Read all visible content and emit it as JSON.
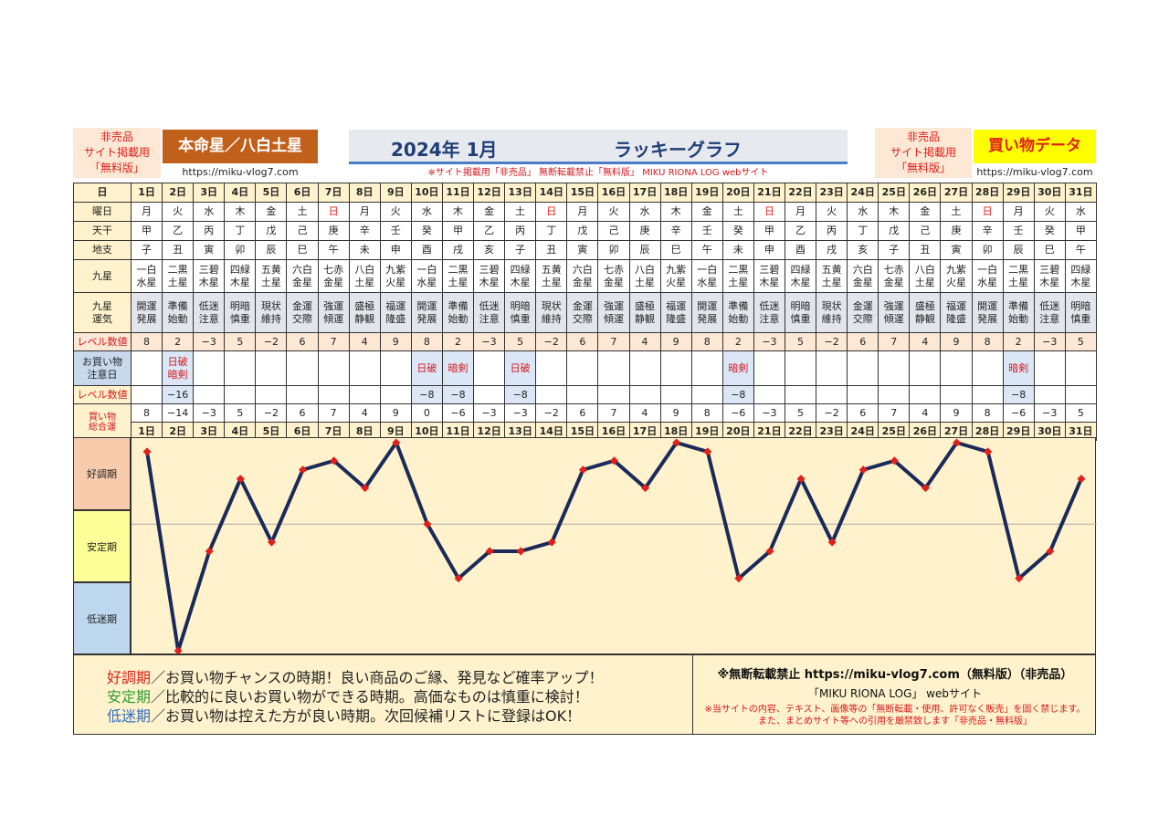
{
  "header": {
    "left_note": [
      "非売品",
      "サイト掲載用",
      "「無料版」"
    ],
    "honmei": "本命星／八白土星",
    "url_left": "https://miku-vlog7.com",
    "title_year": "2024年 1月",
    "title_lucky": "ラッキーグラフ",
    "notice": "※サイト掲載用「非売品」 無断転載禁止「無料版」 MIKU RIONA LOG webサイト",
    "right_note": [
      "非売品",
      "サイト掲載用",
      "「無料版」"
    ],
    "kaimono": "買い物データ",
    "url_right": "https://miku-vlog7.com"
  },
  "labels": {
    "day": "日",
    "weekday": "曜日",
    "tenkan": "天干",
    "chishi": "地支",
    "kyusei": [
      "九星"
    ],
    "kyusei_un": [
      "九星",
      "運気"
    ],
    "level": "レベル数値",
    "caution": [
      "お買い物",
      "注意日"
    ],
    "level2": "レベル数値",
    "total": [
      "買い物",
      "総合運"
    ]
  },
  "days": [
    "1日",
    "2日",
    "3日",
    "4日",
    "5日",
    "6日",
    "7日",
    "8日",
    "9日",
    "10日",
    "11日",
    "12日",
    "13日",
    "14日",
    "15日",
    "16日",
    "17日",
    "18日",
    "19日",
    "20日",
    "21日",
    "22日",
    "23日",
    "24日",
    "25日",
    "26日",
    "27日",
    "28日",
    "29日",
    "30日",
    "31日"
  ],
  "weekdays": [
    "月",
    "火",
    "水",
    "木",
    "金",
    "土",
    "日",
    "月",
    "火",
    "水",
    "木",
    "金",
    "土",
    "日",
    "月",
    "火",
    "水",
    "木",
    "金",
    "土",
    "日",
    "月",
    "火",
    "水",
    "木",
    "金",
    "土",
    "日",
    "月",
    "火",
    "水"
  ],
  "sunday_color": "#e0201a",
  "tenkan": [
    "甲",
    "乙",
    "丙",
    "丁",
    "戊",
    "己",
    "庚",
    "辛",
    "壬",
    "癸",
    "甲",
    "乙",
    "丙",
    "丁",
    "戊",
    "己",
    "庚",
    "辛",
    "壬",
    "癸",
    "甲",
    "乙",
    "丙",
    "丁",
    "戊",
    "己",
    "庚",
    "辛",
    "壬",
    "癸",
    "甲"
  ],
  "chishi": [
    "子",
    "丑",
    "寅",
    "卯",
    "辰",
    "巳",
    "午",
    "未",
    "申",
    "酉",
    "戌",
    "亥",
    "子",
    "丑",
    "寅",
    "卯",
    "辰",
    "巳",
    "午",
    "未",
    "申",
    "酉",
    "戌",
    "亥",
    "子",
    "丑",
    "寅",
    "卯",
    "辰",
    "巳",
    "午"
  ],
  "kyusei": [
    [
      "一白",
      "水星"
    ],
    [
      "二黒",
      "土星"
    ],
    [
      "三碧",
      "木星"
    ],
    [
      "四緑",
      "木星"
    ],
    [
      "五黄",
      "土星"
    ],
    [
      "六白",
      "金星"
    ],
    [
      "七赤",
      "金星"
    ],
    [
      "八白",
      "土星"
    ],
    [
      "九紫",
      "火星"
    ],
    [
      "一白",
      "水星"
    ],
    [
      "二黒",
      "土星"
    ],
    [
      "三碧",
      "木星"
    ],
    [
      "四緑",
      "木星"
    ],
    [
      "五黄",
      "土星"
    ],
    [
      "六白",
      "金星"
    ],
    [
      "七赤",
      "金星"
    ],
    [
      "八白",
      "土星"
    ],
    [
      "九紫",
      "火星"
    ],
    [
      "一白",
      "水星"
    ],
    [
      "二黒",
      "土星"
    ],
    [
      "三碧",
      "木星"
    ],
    [
      "四緑",
      "木星"
    ],
    [
      "五黄",
      "土星"
    ],
    [
      "六白",
      "金星"
    ],
    [
      "七赤",
      "金星"
    ],
    [
      "八白",
      "土星"
    ],
    [
      "九紫",
      "火星"
    ],
    [
      "一白",
      "水星"
    ],
    [
      "二黒",
      "土星"
    ],
    [
      "三碧",
      "木星"
    ],
    [
      "四緑",
      "木星"
    ]
  ],
  "unki": [
    [
      "開運",
      "発展"
    ],
    [
      "準備",
      "始動"
    ],
    [
      "低迷",
      "注意"
    ],
    [
      "明暗",
      "慎重"
    ],
    [
      "現状",
      "維持"
    ],
    [
      "金運",
      "交際"
    ],
    [
      "強運",
      "傾運"
    ],
    [
      "盛極",
      "静観"
    ],
    [
      "福運",
      "隆盛"
    ],
    [
      "開運",
      "発展"
    ],
    [
      "準備",
      "始動"
    ],
    [
      "低迷",
      "注意"
    ],
    [
      "明暗",
      "慎重"
    ],
    [
      "現状",
      "維持"
    ],
    [
      "金運",
      "交際"
    ],
    [
      "強運",
      "傾運"
    ],
    [
      "盛極",
      "静観"
    ],
    [
      "福運",
      "隆盛"
    ],
    [
      "開運",
      "発展"
    ],
    [
      "準備",
      "始動"
    ],
    [
      "低迷",
      "注意"
    ],
    [
      "明暗",
      "慎重"
    ],
    [
      "現状",
      "維持"
    ],
    [
      "金運",
      "交際"
    ],
    [
      "強運",
      "傾運"
    ],
    [
      "盛極",
      "静観"
    ],
    [
      "福運",
      "隆盛"
    ],
    [
      "開運",
      "発展"
    ],
    [
      "準備",
      "始動"
    ],
    [
      "低迷",
      "注意"
    ],
    [
      "明暗",
      "慎重"
    ]
  ],
  "level": [
    "8",
    "2",
    "−3",
    "5",
    "−2",
    "6",
    "7",
    "4",
    "9",
    "8",
    "2",
    "−3",
    "5",
    "−2",
    "6",
    "7",
    "4",
    "9",
    "8",
    "2",
    "−3",
    "5",
    "−2",
    "6",
    "7",
    "4",
    "9",
    "8",
    "2",
    "−3",
    "5"
  ],
  "caution": [
    [],
    [
      "日破",
      "暗剣"
    ],
    [],
    [],
    [],
    [],
    [],
    [],
    [],
    [
      "日破"
    ],
    [
      "暗剣"
    ],
    [],
    [
      "日破"
    ],
    [],
    [],
    [],
    [],
    [],
    [],
    [
      "暗剣"
    ],
    [],
    [],
    [],
    [],
    [],
    [],
    [],
    [],
    [
      "暗剣"
    ],
    [],
    []
  ],
  "level2": [
    "",
    "−16",
    "",
    "",
    "",
    "",
    "",
    "",
    "",
    "−8",
    "−8",
    "",
    "−8",
    "",
    "",
    "",
    "",
    "",
    "",
    "−8",
    "",
    "",
    "",
    "",
    "",
    "",
    "",
    "",
    "−8",
    "",
    ""
  ],
  "total": [
    "8",
    "−14",
    "−3",
    "5",
    "−2",
    "6",
    "7",
    "4",
    "9",
    "0",
    "−6",
    "−3",
    "−3",
    "−2",
    "6",
    "7",
    "4",
    "9",
    "8",
    "−6",
    "−3",
    "5",
    "−2",
    "6",
    "7",
    "4",
    "9",
    "8",
    "−6",
    "−3",
    "5"
  ],
  "zones": {
    "good": "好調期",
    "stable": "安定期",
    "low": "低迷期",
    "good_color": "#f8cbad",
    "stable_color": "#ffff99",
    "low_color": "#bdd7ee"
  },
  "chart_data": {
    "type": "line",
    "x": [
      "1日",
      "2日",
      "3日",
      "4日",
      "5日",
      "6日",
      "7日",
      "8日",
      "9日",
      "10日",
      "11日",
      "12日",
      "13日",
      "14日",
      "15日",
      "16日",
      "17日",
      "18日",
      "19日",
      "20日",
      "21日",
      "22日",
      "23日",
      "24日",
      "25日",
      "26日",
      "27日",
      "28日",
      "29日",
      "30日",
      "31日"
    ],
    "series": [
      {
        "values": [
          8,
          -14,
          -3,
          5,
          -2,
          6,
          7,
          4,
          9,
          0,
          -6,
          -3,
          -3,
          -2,
          6,
          7,
          4,
          9,
          8,
          -6,
          -3,
          5,
          -2,
          6,
          7,
          4,
          9,
          8,
          -6,
          -3,
          5
        ]
      }
    ],
    "ylim": [
      -14,
      9
    ],
    "line_color": "#1a2a5a",
    "marker_color": "#e0201a"
  },
  "footer": {
    "good_label": "好調期",
    "good_text": "／お買い物チャンスの時期！良い商品のご縁、発見など確率アップ！",
    "stable_label": "安定期",
    "stable_text": "／比較的に良いお買い物ができる時期。高価なものは慎重に検討！",
    "low_label": "低迷期",
    "low_text": "／お買い物は控えた方が良い時期。次回候補リストに登録はOK！",
    "good_color": "#e0201a",
    "stable_color": "#2e9e2e",
    "low_color": "#2f6fc0",
    "right1": "※無断転載禁止 https://miku-vlog7.com（無料版）（非売品）",
    "right2": "「MIKU RIONA LOG」 webサイト",
    "right3": "※当サイトの内容、テキスト、画像等の「無断転載・使用、許可なく販売」を固く禁じます。",
    "right4": "また、まとめサイト等への引用を厳禁致します「非売品・無料版」"
  }
}
